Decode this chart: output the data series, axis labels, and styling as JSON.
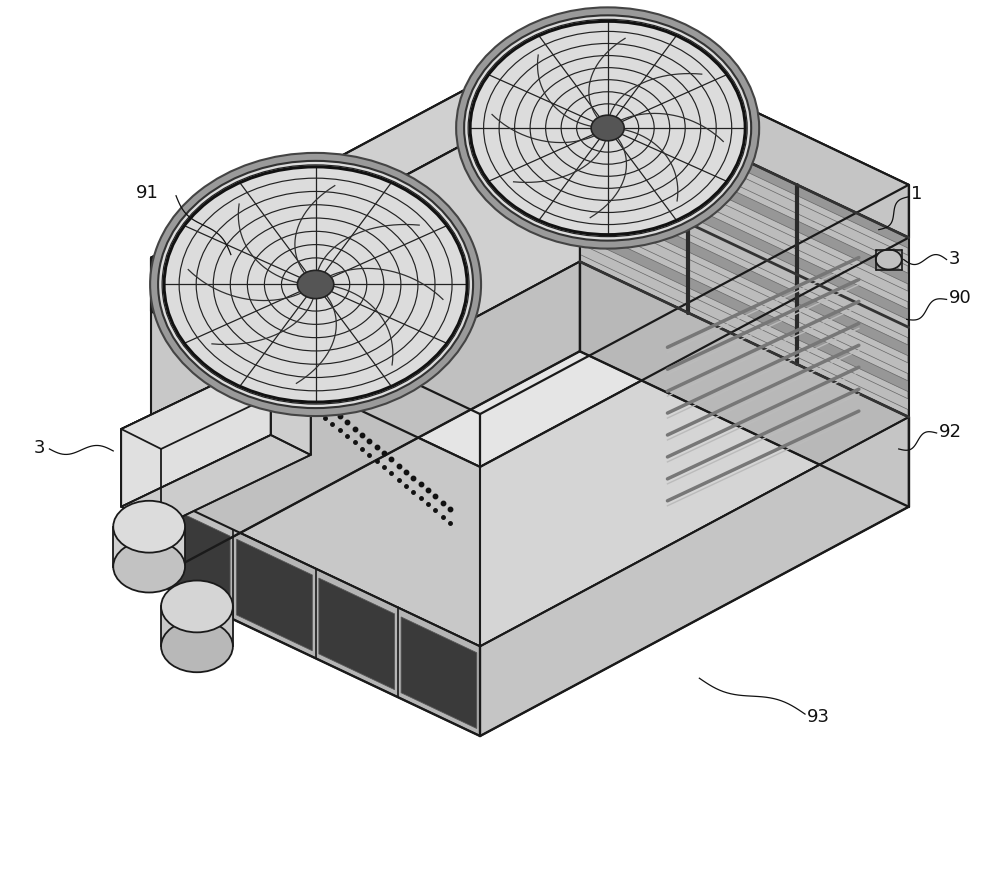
{
  "bg_color": "#ffffff",
  "line_color": "#1a1a1a",
  "lw": 1.3,
  "label_fontsize": 13,
  "figsize": [
    10.0,
    8.7
  ],
  "dpi": 100
}
